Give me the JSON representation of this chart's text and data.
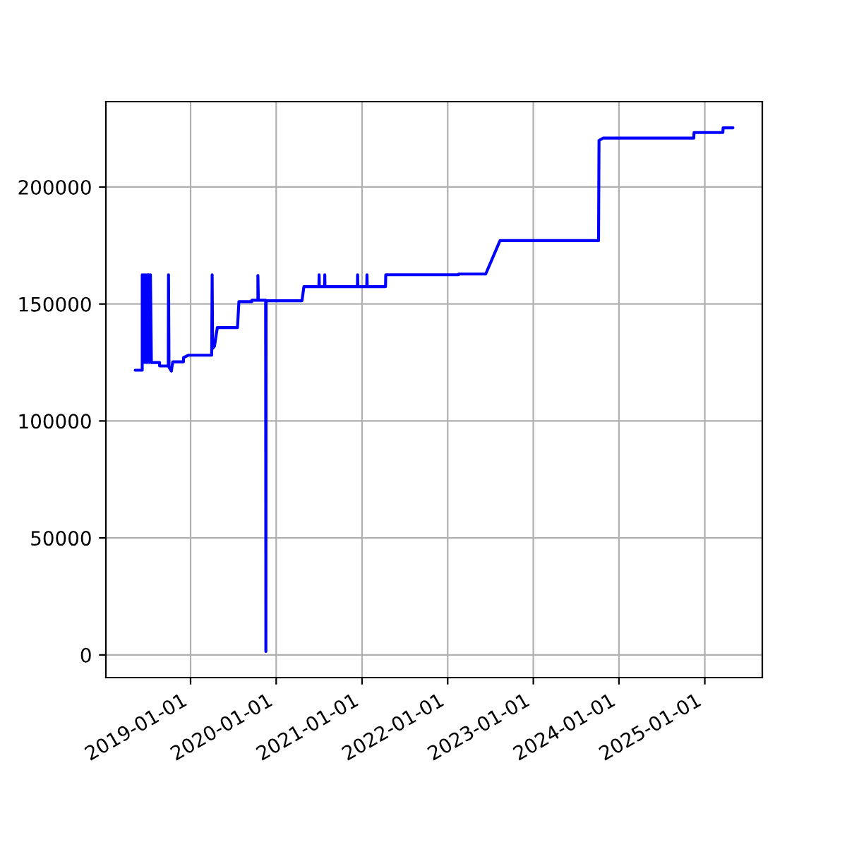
{
  "chart_data": {
    "type": "line",
    "x": [
      "2018-05-10",
      "2018-06-09",
      "2018-06-09",
      "2018-06-13",
      "2018-06-16",
      "2018-06-20",
      "2018-06-23",
      "2018-06-27",
      "2018-07-01",
      "2018-07-04",
      "2018-07-07",
      "2018-07-11",
      "2018-07-14",
      "2018-07-18",
      "2018-08-22",
      "2018-08-22",
      "2018-09-28",
      "2018-09-29",
      "2018-10-01",
      "2018-10-11",
      "2018-10-17",
      "2018-12-02",
      "2018-12-02",
      "2018-12-22",
      "2019-04-01",
      "2019-04-03",
      "2019-04-05",
      "2019-04-13",
      "2019-04-25",
      "2019-07-20",
      "2019-07-26",
      "2019-09-19",
      "2019-09-19",
      "2019-10-15",
      "2019-10-15",
      "2019-10-17",
      "2019-11-17",
      "2019-11-18",
      "2019-11-19",
      "2020-04-20",
      "2020-04-28",
      "2020-07-01",
      "2020-07-02",
      "2020-07-03",
      "2020-07-25",
      "2020-07-26",
      "2020-07-27",
      "2020-12-12",
      "2020-12-13",
      "2020-12-14",
      "2021-01-21",
      "2021-01-22",
      "2021-01-23",
      "2021-04-11",
      "2021-04-12",
      "2022-02-16",
      "2022-02-17",
      "2022-06-12",
      "2022-08-12",
      "2023-10-06",
      "2023-10-08",
      "2023-10-25",
      "2024-11-15",
      "2024-11-16",
      "2025-03-19",
      "2025-03-20",
      "2025-05-01"
    ],
    "series": [
      {
        "color": "#0000ff",
        "values": [
          121700,
          121700,
          162500,
          125000,
          162500,
          125000,
          162500,
          125000,
          162500,
          125000,
          162500,
          125000,
          162500,
          125000,
          125000,
          123500,
          123500,
          162500,
          123000,
          121300,
          125300,
          125300,
          127100,
          128100,
          128100,
          162500,
          131000,
          132000,
          139900,
          139900,
          151000,
          151000,
          151600,
          151600,
          162200,
          151600,
          151600,
          1500,
          151400,
          151400,
          157400,
          157400,
          162500,
          157400,
          157400,
          162500,
          157400,
          157400,
          162500,
          157400,
          157400,
          162500,
          157400,
          157400,
          162500,
          162500,
          162800,
          162800,
          177100,
          177100,
          219900,
          220900,
          220900,
          223300,
          223300,
          225300,
          225300
        ]
      }
    ],
    "xlim": [
      "2018-01-05",
      "2025-09-03"
    ],
    "xticks": [
      "2019-01-01",
      "2020-01-01",
      "2021-01-01",
      "2022-01-01",
      "2023-01-01",
      "2024-01-01",
      "2025-01-01"
    ],
    "ylim": [
      -9700,
      236500
    ],
    "yticks": [
      0,
      50000,
      100000,
      150000,
      200000
    ],
    "grid": true,
    "marker": "none",
    "line_style": "solid"
  }
}
